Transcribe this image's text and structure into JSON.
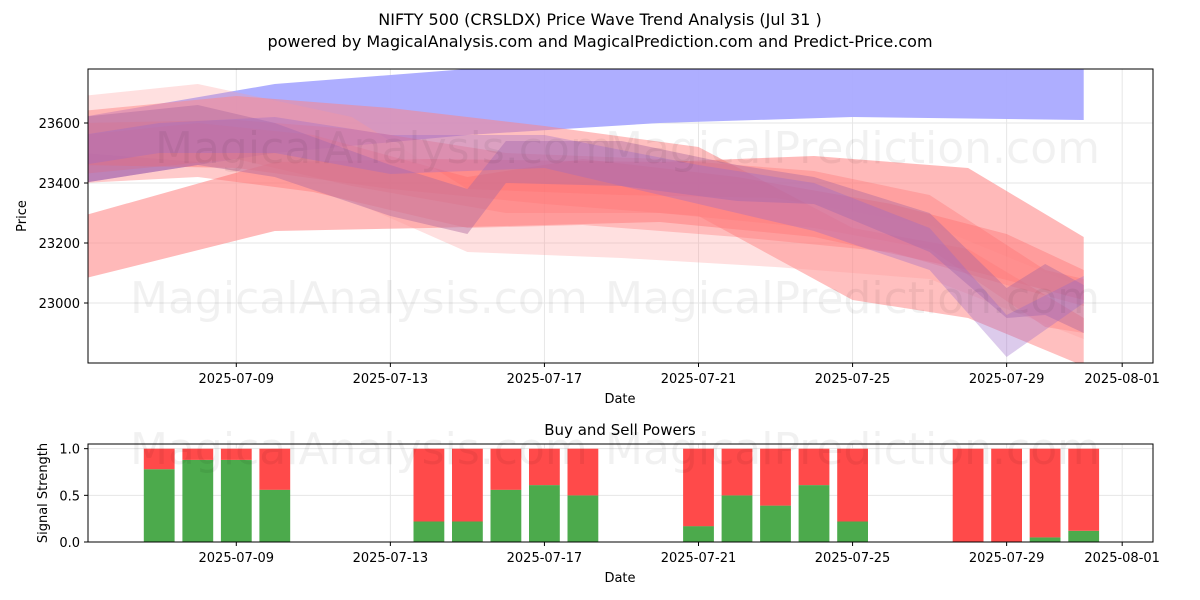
{
  "title_line1": "NIFTY 500 (CRSLDX) Price Wave Trend Analysis (Jul 31 )",
  "title_line2": "powered by MagicalAnalysis.com and MagicalPrediction.com and Predict-Price.com",
  "watermarks": [
    "MagicalAnalysis.com",
    "MagicalPrediction.com"
  ],
  "colors": {
    "buy": "#4caa4c",
    "sell": "#ff4a4a",
    "bull_wave": "#aaaaff",
    "bear_wave": "#ff6666"
  },
  "chart_data": [
    {
      "type": "area",
      "title": "",
      "xlabel": "Date",
      "ylabel": "Price",
      "grid": true,
      "xlim": [
        "2025-07-05",
        "2025-08-01"
      ],
      "ylim": [
        22800,
        23780
      ],
      "x_ticks": [
        "2025-07-09",
        "2025-07-13",
        "2025-07-17",
        "2025-07-21",
        "2025-07-25",
        "2025-07-29",
        "2025-08-01"
      ],
      "y_ticks": [
        23000,
        23200,
        23400,
        23600
      ],
      "bands": [
        {
          "name": "bull-wave-1",
          "color": "#aaaaff",
          "opacity": 0.95,
          "x": [
            "2025-07-05",
            "2025-07-10",
            "2025-07-15",
            "2025-07-20",
            "2025-07-25",
            "2025-07-31"
          ],
          "lower": [
            23400,
            23500,
            23560,
            23600,
            23620,
            23610
          ],
          "upper": [
            23620,
            23730,
            23780,
            23780,
            23780,
            23780
          ]
        },
        {
          "name": "bear-wave-1",
          "color": "#ff8080",
          "opacity": 0.55,
          "x": [
            "2025-07-05",
            "2025-07-10",
            "2025-07-14",
            "2025-07-20",
            "2025-07-24",
            "2025-07-28",
            "2025-07-31"
          ],
          "lower": [
            23080,
            23240,
            23250,
            23270,
            23220,
            23110,
            23010
          ],
          "upper": [
            23290,
            23470,
            23480,
            23470,
            23490,
            23450,
            23220
          ]
        },
        {
          "name": "bear-wave-2",
          "color": "#ff8080",
          "opacity": 0.5,
          "x": [
            "2025-07-05",
            "2025-07-09",
            "2025-07-13",
            "2025-07-17",
            "2025-07-21",
            "2025-07-25",
            "2025-07-28",
            "2025-07-31"
          ],
          "lower": [
            23460,
            23450,
            23380,
            23330,
            23290,
            23010,
            22950,
            22790
          ],
          "upper": [
            23640,
            23690,
            23650,
            23590,
            23520,
            23250,
            23180,
            22950
          ]
        },
        {
          "name": "bear-wave-3",
          "color": "#ff6666",
          "opacity": 0.35,
          "x": [
            "2025-07-05",
            "2025-07-08",
            "2025-07-11",
            "2025-07-15",
            "2025-07-18",
            "2025-07-22",
            "2025-07-26",
            "2025-07-29",
            "2025-07-31"
          ],
          "lower": [
            23400,
            23420,
            23370,
            23250,
            23260,
            23220,
            23170,
            23060,
            22990
          ],
          "upper": [
            23560,
            23600,
            23560,
            23420,
            23480,
            23420,
            23330,
            23230,
            23110
          ]
        },
        {
          "name": "bear-wave-4",
          "color": "#ff6666",
          "opacity": 0.3,
          "x": [
            "2025-07-05",
            "2025-07-09",
            "2025-07-12",
            "2025-07-16",
            "2025-07-20",
            "2025-07-24",
            "2025-07-27",
            "2025-07-30",
            "2025-07-31"
          ],
          "lower": [
            23430,
            23480,
            23390,
            23300,
            23300,
            23250,
            23180,
            22920,
            22900
          ],
          "upper": [
            23600,
            23610,
            23580,
            23500,
            23480,
            23440,
            23360,
            23110,
            23080
          ]
        },
        {
          "name": "bear-wave-5",
          "color": "#ff9999",
          "opacity": 0.3,
          "x": [
            "2025-07-05",
            "2025-07-08",
            "2025-07-12",
            "2025-07-15",
            "2025-07-19",
            "2025-07-23",
            "2025-07-27",
            "2025-07-31"
          ],
          "lower": [
            23500,
            23470,
            23340,
            23170,
            23150,
            23120,
            23080,
            22880
          ],
          "upper": [
            23690,
            23730,
            23620,
            23380,
            23360,
            23350,
            23260,
            23050
          ]
        },
        {
          "name": "mixed-wave-1",
          "color": "#b06aa0",
          "opacity": 0.45,
          "x": [
            "2025-07-05",
            "2025-07-08",
            "2025-07-10",
            "2025-07-13",
            "2025-07-15",
            "2025-07-16",
            "2025-07-19",
            "2025-07-22",
            "2025-07-24",
            "2025-07-27",
            "2025-07-29",
            "2025-07-30",
            "2025-07-31"
          ],
          "lower": [
            23400,
            23460,
            23420,
            23290,
            23230,
            23400,
            23390,
            23340,
            23330,
            23170,
            22950,
            22960,
            22900
          ],
          "upper": [
            23620,
            23660,
            23600,
            23460,
            23380,
            23540,
            23540,
            23460,
            23420,
            23300,
            23050,
            23130,
            23060
          ]
        },
        {
          "name": "mixed-wave-2",
          "color": "#9b6bc8",
          "opacity": 0.35,
          "x": [
            "2025-07-05",
            "2025-07-07",
            "2025-07-10",
            "2025-07-13",
            "2025-07-17",
            "2025-07-21",
            "2025-07-24",
            "2025-07-27",
            "2025-07-29",
            "2025-07-31"
          ],
          "lower": [
            23460,
            23500,
            23500,
            23430,
            23450,
            23330,
            23240,
            23110,
            22820,
            23000
          ],
          "upper": [
            23560,
            23600,
            23620,
            23560,
            23560,
            23460,
            23400,
            23250,
            22960,
            23090
          ]
        }
      ]
    },
    {
      "type": "bar",
      "title": "Buy and Sell Powers",
      "xlabel": "Date",
      "ylabel": "Signal Strength",
      "grid": true,
      "stacked": true,
      "xlim": [
        "2025-07-05",
        "2025-08-01"
      ],
      "ylim": [
        0,
        1.05
      ],
      "x_ticks": [
        "2025-07-09",
        "2025-07-13",
        "2025-07-17",
        "2025-07-21",
        "2025-07-25",
        "2025-07-29",
        "2025-08-01"
      ],
      "y_ticks": [
        0.0,
        0.5,
        1.0
      ],
      "y_tick_labels": [
        "0.0",
        "0.5",
        "1.0"
      ],
      "categories": [
        "2025-07-07",
        "2025-07-08",
        "2025-07-09",
        "2025-07-10",
        "2025-07-14",
        "2025-07-15",
        "2025-07-16",
        "2025-07-17",
        "2025-07-18",
        "2025-07-21",
        "2025-07-22",
        "2025-07-23",
        "2025-07-24",
        "2025-07-25",
        "2025-07-28",
        "2025-07-29",
        "2025-07-30",
        "2025-07-31"
      ],
      "series": [
        {
          "name": "Buy Power",
          "color": "#4caa4c",
          "values": [
            0.78,
            0.88,
            0.88,
            0.56,
            0.22,
            0.22,
            0.56,
            0.61,
            0.5,
            0.17,
            0.5,
            0.39,
            0.61,
            0.22,
            0.0,
            0.0,
            0.05,
            0.12
          ]
        },
        {
          "name": "Sell Power",
          "color": "#ff4a4a",
          "values": [
            0.22,
            0.12,
            0.12,
            0.44,
            0.78,
            0.78,
            0.44,
            0.39,
            0.5,
            0.83,
            0.5,
            0.61,
            0.39,
            0.78,
            1.0,
            1.0,
            0.95,
            0.88
          ]
        }
      ]
    }
  ]
}
